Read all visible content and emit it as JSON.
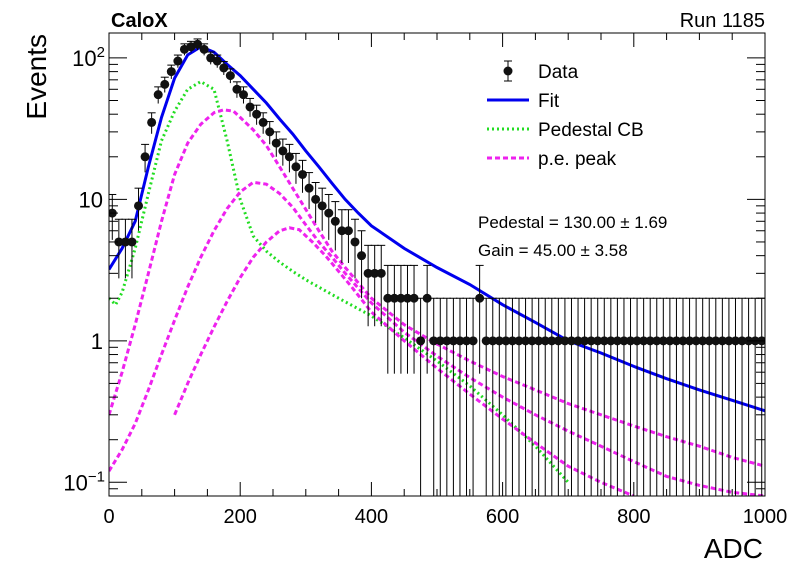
{
  "chart_data": {
    "type": "scatter",
    "label_left": "CaloX",
    "label_right": "Run 1185",
    "xlabel": "ADC",
    "ylabel": "Events",
    "xlim": [
      0,
      1000
    ],
    "ylim": [
      0.08,
      150
    ],
    "y_log": true,
    "grid": false,
    "x_ticks": [
      "0",
      "200",
      "400",
      "600",
      "800",
      "1000"
    ],
    "y_ticks": [
      {
        "base": "10",
        "exp": "−1",
        "value": 0.1
      },
      {
        "base": "1",
        "exp": "",
        "value": 1
      },
      {
        "base": "10",
        "exp": "",
        "value": 10
      },
      {
        "base": "10",
        "exp": "2",
        "value": 100
      }
    ],
    "legend": {
      "position": "top-right",
      "entries": [
        {
          "label": "Data",
          "style": "marker"
        },
        {
          "label": "Fit",
          "style": "solid",
          "color": "#0000ee"
        },
        {
          "label": "Pedestal CB",
          "style": "dotted",
          "color": "#22dd22"
        },
        {
          "label": "p.e. peak",
          "style": "dashed",
          "color": "#ee22ee"
        }
      ]
    },
    "annotations": {
      "pedestal": "Pedestal = 130.00 ± 1.69",
      "gain": "Gain = 45.00 ± 3.58"
    },
    "colors": {
      "data": "#000000",
      "fit": "#0000ee",
      "pedestal": "#22dd22",
      "pe_peak": "#ee22ee"
    },
    "series": [
      {
        "name": "Data",
        "style": "marker",
        "x": [
          5,
          15,
          25,
          35,
          45,
          55,
          65,
          75,
          85,
          95,
          105,
          115,
          125,
          135,
          145,
          155,
          165,
          175,
          185,
          195,
          205,
          215,
          225,
          235,
          245,
          255,
          265,
          275,
          285,
          295,
          305,
          315,
          325,
          335,
          345,
          355,
          365,
          375,
          385,
          395,
          405,
          415,
          425,
          435,
          445,
          455,
          465,
          475,
          485,
          495,
          505,
          515,
          525,
          535,
          545,
          555,
          565,
          575,
          585,
          595,
          605,
          615,
          625,
          635,
          645,
          655,
          665,
          675,
          685,
          695,
          705,
          715,
          725,
          735,
          745,
          755,
          765,
          775,
          785,
          795,
          805,
          815,
          825,
          835,
          845,
          855,
          865,
          875,
          885,
          895,
          905,
          915,
          925,
          935,
          945,
          955,
          965,
          975,
          985,
          995
        ],
        "y": [
          8,
          5,
          5,
          5,
          9,
          20,
          35,
          55,
          65,
          80,
          95,
          115,
          120,
          125,
          115,
          100,
          95,
          85,
          75,
          60,
          55,
          45,
          40,
          35,
          30,
          25,
          22,
          20,
          17,
          15,
          12,
          10,
          9,
          8,
          7,
          6,
          6,
          5,
          4,
          3,
          3,
          3,
          2,
          2,
          2,
          2,
          2,
          1,
          2,
          1,
          1,
          1,
          1,
          1,
          1,
          1,
          2,
          1,
          1,
          1,
          1,
          1,
          1,
          1,
          1,
          1,
          1,
          1,
          1,
          1,
          1,
          1,
          1,
          1,
          1,
          1,
          1,
          1,
          1,
          1,
          1,
          1,
          1,
          1,
          1,
          1,
          1,
          1,
          1,
          1,
          1,
          1,
          1,
          1,
          1,
          1,
          1,
          1,
          1,
          1
        ]
      },
      {
        "name": "Fit",
        "style": "line",
        "x": [
          0,
          20,
          40,
          60,
          80,
          100,
          120,
          140,
          160,
          180,
          200,
          220,
          240,
          260,
          280,
          300,
          320,
          340,
          360,
          380,
          400,
          450,
          500,
          550,
          600,
          650,
          700,
          750,
          800,
          850,
          900,
          950,
          1000
        ],
        "y": [
          3.2,
          4.5,
          7,
          17,
          38,
          72,
          105,
          120,
          110,
          90,
          75,
          60,
          48,
          37,
          29,
          22,
          17,
          13,
          10,
          8,
          6.5,
          4.5,
          3.3,
          2.5,
          1.8,
          1.35,
          1.0,
          0.82,
          0.66,
          0.54,
          0.45,
          0.38,
          0.32
        ]
      },
      {
        "name": "Pedestal CB",
        "style": "dotted",
        "x": [
          0,
          10,
          20,
          40,
          60,
          80,
          100,
          120,
          140,
          160,
          180,
          200,
          220,
          240,
          260,
          280,
          300,
          350,
          400,
          450,
          500,
          550,
          600,
          650,
          700
        ],
        "y": [
          2.0,
          1.8,
          2.2,
          4.5,
          11,
          26,
          42,
          60,
          68,
          60,
          26,
          10,
          5.5,
          4.3,
          3.6,
          3.1,
          2.7,
          2.0,
          1.5,
          1.05,
          0.72,
          0.48,
          0.3,
          0.18,
          0.1
        ]
      },
      {
        "name": "p.e. peak",
        "style": "dashed",
        "x": [
          0,
          20,
          40,
          60,
          80,
          100,
          120,
          140,
          160,
          175,
          190,
          200,
          220,
          240,
          260,
          280,
          300,
          320,
          340,
          360,
          400,
          450,
          500,
          550,
          600,
          650,
          700,
          750,
          800,
          850,
          900,
          950,
          1000
        ],
        "y": [
          0.3,
          0.6,
          1.3,
          3.0,
          7,
          15,
          25,
          34,
          41,
          43,
          42,
          38,
          31,
          24,
          17,
          12,
          8.5,
          6,
          4.3,
          3.3,
          2.0,
          1.3,
          0.95,
          0.72,
          0.56,
          0.45,
          0.36,
          0.3,
          0.25,
          0.21,
          0.18,
          0.15,
          0.13
        ]
      },
      {
        "name": "p.e. peak",
        "style": "dashed",
        "x": [
          0,
          20,
          40,
          60,
          80,
          100,
          120,
          140,
          160,
          180,
          200,
          220,
          240,
          260,
          280,
          300,
          320,
          340,
          360,
          400,
          450,
          500,
          550,
          600,
          650,
          700,
          750,
          800,
          850,
          900,
          950,
          1000
        ],
        "y": [
          0.12,
          0.17,
          0.26,
          0.45,
          0.8,
          1.4,
          2.4,
          3.9,
          6,
          8.6,
          11.3,
          13.2,
          12.8,
          11,
          8.8,
          6.6,
          5,
          3.9,
          3.0,
          1.85,
          1.15,
          0.78,
          0.55,
          0.4,
          0.3,
          0.23,
          0.18,
          0.14,
          0.11,
          0.095,
          0.085,
          0.08
        ]
      },
      {
        "name": "p.e. peak",
        "style": "dashed",
        "x": [
          100,
          120,
          140,
          160,
          180,
          200,
          220,
          240,
          260,
          275,
          290,
          310,
          330,
          350,
          370,
          400,
          450,
          500,
          550,
          600,
          650,
          700,
          750,
          800
        ],
        "y": [
          0.3,
          0.5,
          0.8,
          1.25,
          1.9,
          2.8,
          3.9,
          5,
          6.0,
          6.3,
          6.1,
          5,
          4,
          3.1,
          2.4,
          1.6,
          1.0,
          0.64,
          0.42,
          0.28,
          0.19,
          0.13,
          0.1,
          0.08
        ]
      }
    ]
  }
}
